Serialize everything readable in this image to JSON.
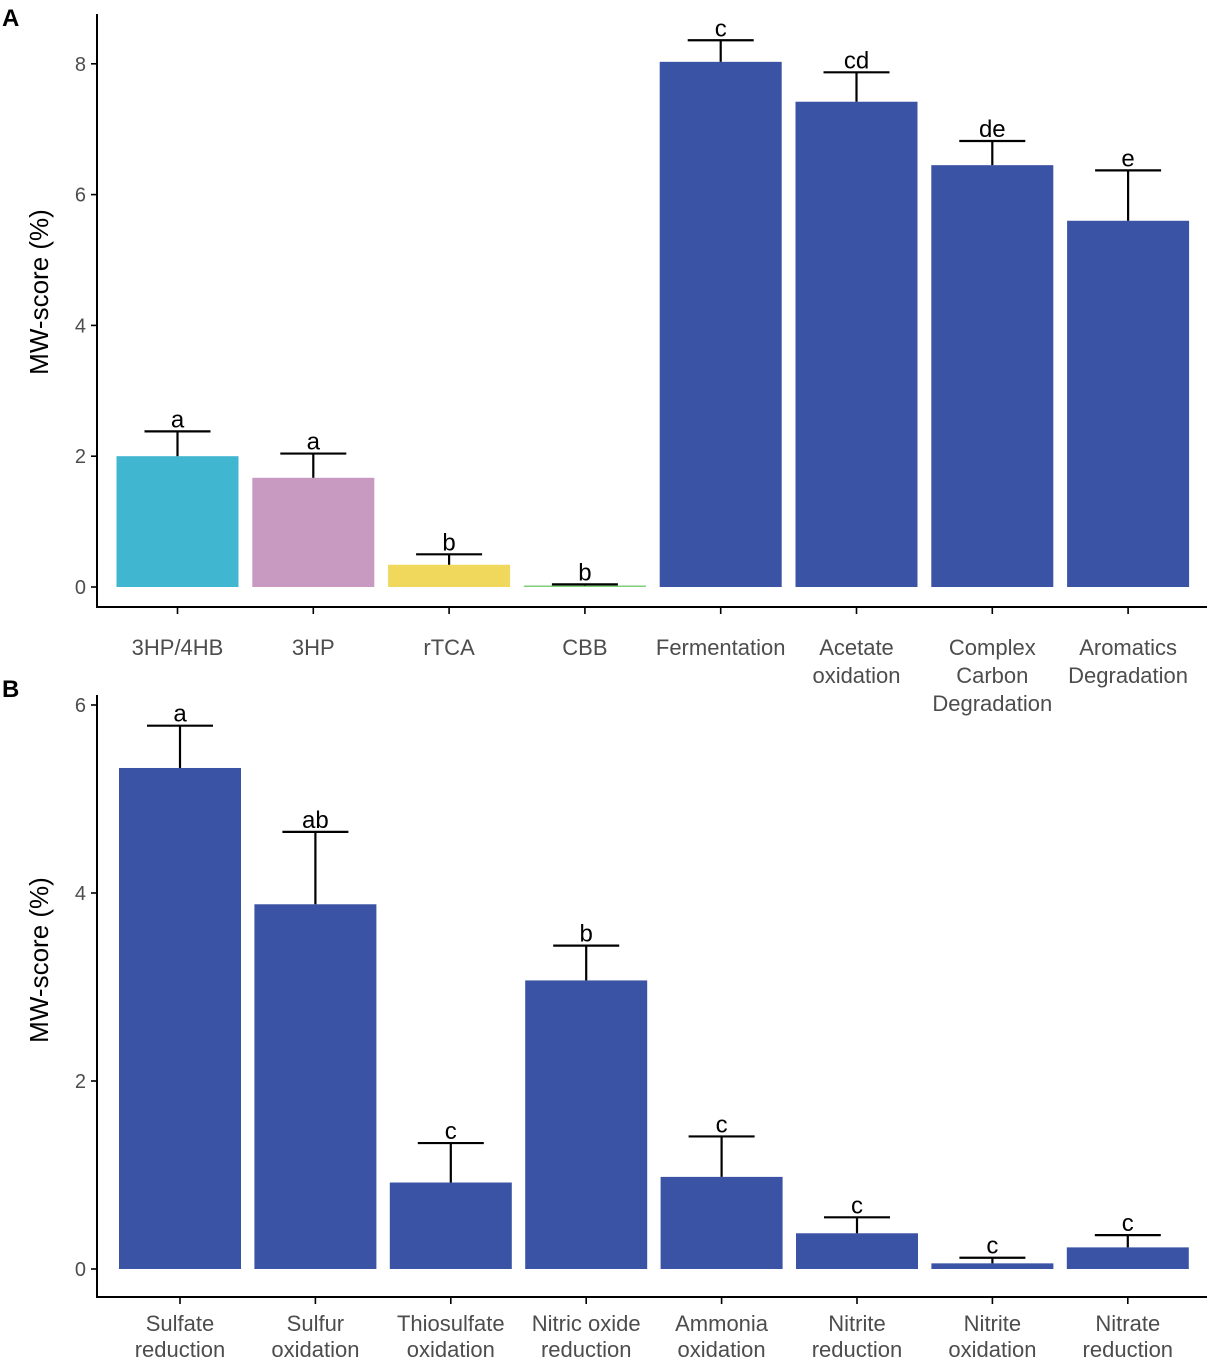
{
  "chart_data": [
    {
      "type": "bar",
      "panel": "A",
      "ylabel": "MW-score (%)",
      "ylim": [
        0,
        8.6
      ],
      "yticks": [
        0,
        2,
        4,
        6,
        8
      ],
      "categories": [
        [
          "3HP/4HB"
        ],
        [
          "3HP"
        ],
        [
          "rTCA"
        ],
        [
          "CBB"
        ],
        [
          "Fermentation"
        ],
        [
          "Acetate",
          "oxidation"
        ],
        [
          "Complex",
          "Carbon",
          "Degradation"
        ],
        [
          "Aromatics",
          "Degradation"
        ]
      ],
      "values": [
        2.0,
        1.67,
        0.34,
        0.02,
        8.03,
        7.42,
        6.45,
        5.6
      ],
      "errors": [
        0.38,
        0.37,
        0.16,
        0.02,
        0.33,
        0.45,
        0.37,
        0.77
      ],
      "letters": [
        "a",
        "a",
        "b",
        "b",
        "c",
        "cd",
        "de",
        "e"
      ],
      "colors": [
        "#41b6d0",
        "#c899c1",
        "#efd85c",
        "#7fcf7a",
        "#3b53a4",
        "#3b53a4",
        "#3b53a4",
        "#3b53a4"
      ]
    },
    {
      "type": "bar",
      "panel": "B",
      "ylabel": "MW-score (%)",
      "ylim": [
        0,
        6.0
      ],
      "yticks": [
        0,
        2,
        4,
        6
      ],
      "categories": [
        [
          "Sulfate",
          "reduction"
        ],
        [
          "Sulfur",
          "oxidation"
        ],
        [
          "Thiosulfate",
          "oxidation"
        ],
        [
          "Nitric oxide",
          "reduction"
        ],
        [
          "Ammonia",
          "oxidation"
        ],
        [
          "Nitrite",
          "reduction"
        ],
        [
          "Nitrite",
          "oxidation"
        ],
        [
          "Nitrate",
          "reduction"
        ]
      ],
      "values": [
        5.33,
        3.88,
        0.92,
        3.07,
        0.98,
        0.38,
        0.06,
        0.23
      ],
      "errors": [
        0.45,
        0.77,
        0.42,
        0.37,
        0.43,
        0.17,
        0.06,
        0.13
      ],
      "letters": [
        "a",
        "ab",
        "c",
        "b",
        "c",
        "c",
        "c",
        "c"
      ],
      "colors": [
        "#3b53a4",
        "#3b53a4",
        "#3b53a4",
        "#3b53a4",
        "#3b53a4",
        "#3b53a4",
        "#3b53a4",
        "#3b53a4"
      ]
    }
  ]
}
